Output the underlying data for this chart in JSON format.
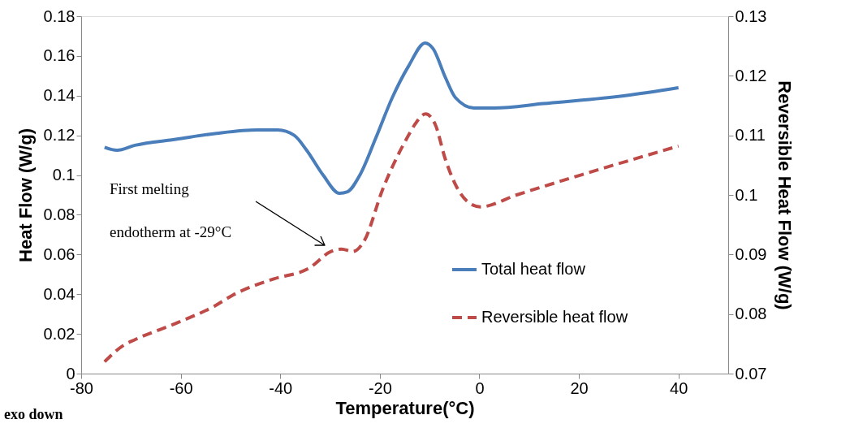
{
  "chart_data": {
    "type": "line",
    "xlabel": "Temperature(°C)",
    "ylabel": "Heat Flow (W/g)",
    "y2label": "Reversible Heat Flow (W/g)",
    "xlim": [
      -80,
      50
    ],
    "xticks": [
      -80,
      -60,
      -40,
      -20,
      0,
      20,
      40
    ],
    "ylim": [
      0,
      0.18
    ],
    "yticks": [
      0,
      0.02,
      0.04,
      0.06,
      0.08,
      0.1,
      0.12,
      0.14,
      0.16,
      0.18
    ],
    "y2lim": [
      0.07,
      0.13
    ],
    "y2ticks": [
      0.07,
      0.08,
      0.09,
      0.1,
      0.11,
      0.12,
      0.13
    ],
    "grid": false,
    "legend": "bottom right",
    "marker": "none",
    "annotations": [
      "First melting",
      "endotherm at -29°C",
      "exo down"
    ],
    "series": [
      {
        "name": "Total heat flow",
        "color": "#4a7ebb",
        "line_style": "solid",
        "x": [
          -75.3,
          -72.8,
          -69.2,
          -61,
          -52.8,
          -44.6,
          -40.5,
          -37.2,
          -34.7,
          -31.4,
          -28.1,
          -26.5,
          -24,
          -20.8,
          -17.5,
          -14.2,
          -10.9,
          -9.3,
          -6.8,
          -4.8,
          -1.1,
          3,
          12.9,
          29.3,
          40
        ],
        "values": [
          0.114,
          0.1125,
          0.115,
          0.118,
          0.121,
          0.1227,
          0.1227,
          0.12,
          0.1125,
          0.1,
          0.0908,
          0.0916,
          0.1,
          0.1187,
          0.139,
          0.155,
          0.1665,
          0.1637,
          0.149,
          0.139,
          0.1338,
          0.1338,
          0.136,
          0.14,
          0.144
        ]
      },
      {
        "name": "Reversible heat flow",
        "color": "#be4b48",
        "line_style": "dashed",
        "axis": "y2",
        "x": [
          -75.3,
          -71.4,
          -69.2,
          -60.5,
          -53.3,
          -49.5,
          -41.3,
          -34.2,
          -29.8,
          -27.7,
          -25.4,
          -23.2,
          -19.4,
          -13.9,
          -12.9,
          -10.8,
          -8.9,
          -6.8,
          -4.6,
          -2.4,
          0.2,
          7.5,
          20.6,
          40
        ],
        "values": [
          0.072,
          0.0748,
          0.0757,
          0.0786,
          0.0813,
          0.0832,
          0.0859,
          0.0877,
          0.0905,
          0.0909,
          0.0905,
          0.0922,
          0.101,
          0.1105,
          0.1119,
          0.1136,
          0.1119,
          0.1059,
          0.1014,
          0.0989,
          0.098,
          0.1,
          0.1034,
          0.1082
        ]
      }
    ]
  }
}
